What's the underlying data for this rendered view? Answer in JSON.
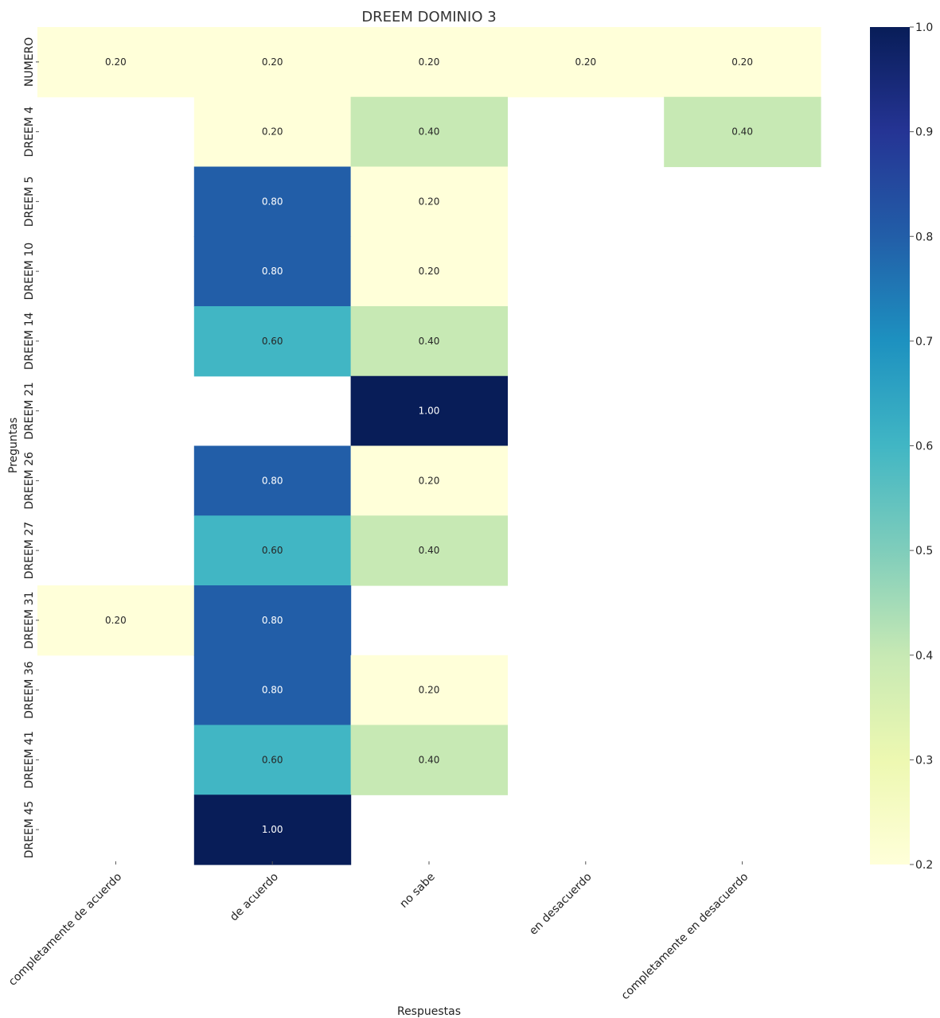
{
  "chart_data": {
    "type": "heatmap",
    "title": "DREEM DOMINIO 3",
    "xlabel": "Respuestas",
    "ylabel": "Preguntas",
    "columns": [
      "completamente de acuerdo",
      "de acuerdo",
      "no sabe",
      "en desacuerdo",
      "completamente en desacuerdo"
    ],
    "rows": [
      "NUMERO",
      "DREEM 4",
      "DREEM 5",
      "DREEM 10",
      "DREEM 14",
      "DREEM 21",
      "DREEM 26",
      "DREEM 27",
      "DREEM 31",
      "DREEM 36",
      "DREEM 41",
      "DREEM 45"
    ],
    "values": [
      [
        0.2,
        0.2,
        0.2,
        0.2,
        0.2
      ],
      [
        null,
        0.2,
        0.4,
        null,
        0.4
      ],
      [
        null,
        0.8,
        0.2,
        null,
        null
      ],
      [
        null,
        0.8,
        0.2,
        null,
        null
      ],
      [
        null,
        0.6,
        0.4,
        null,
        null
      ],
      [
        null,
        null,
        1.0,
        null,
        null
      ],
      [
        null,
        0.8,
        0.2,
        null,
        null
      ],
      [
        null,
        0.6,
        0.4,
        null,
        null
      ],
      [
        0.2,
        0.8,
        null,
        null,
        null
      ],
      [
        null,
        0.8,
        0.2,
        null,
        null
      ],
      [
        null,
        0.6,
        0.4,
        null,
        null
      ],
      [
        null,
        1.0,
        null,
        null,
        null
      ]
    ],
    "value_format": "0.00",
    "colormap": "YlGnBu",
    "vmin": 0.2,
    "vmax": 1.0,
    "colorbar_ticks": [
      "0.2",
      "0.3",
      "0.4",
      "0.5",
      "0.6",
      "0.7",
      "0.8",
      "0.9",
      "1.0"
    ]
  }
}
